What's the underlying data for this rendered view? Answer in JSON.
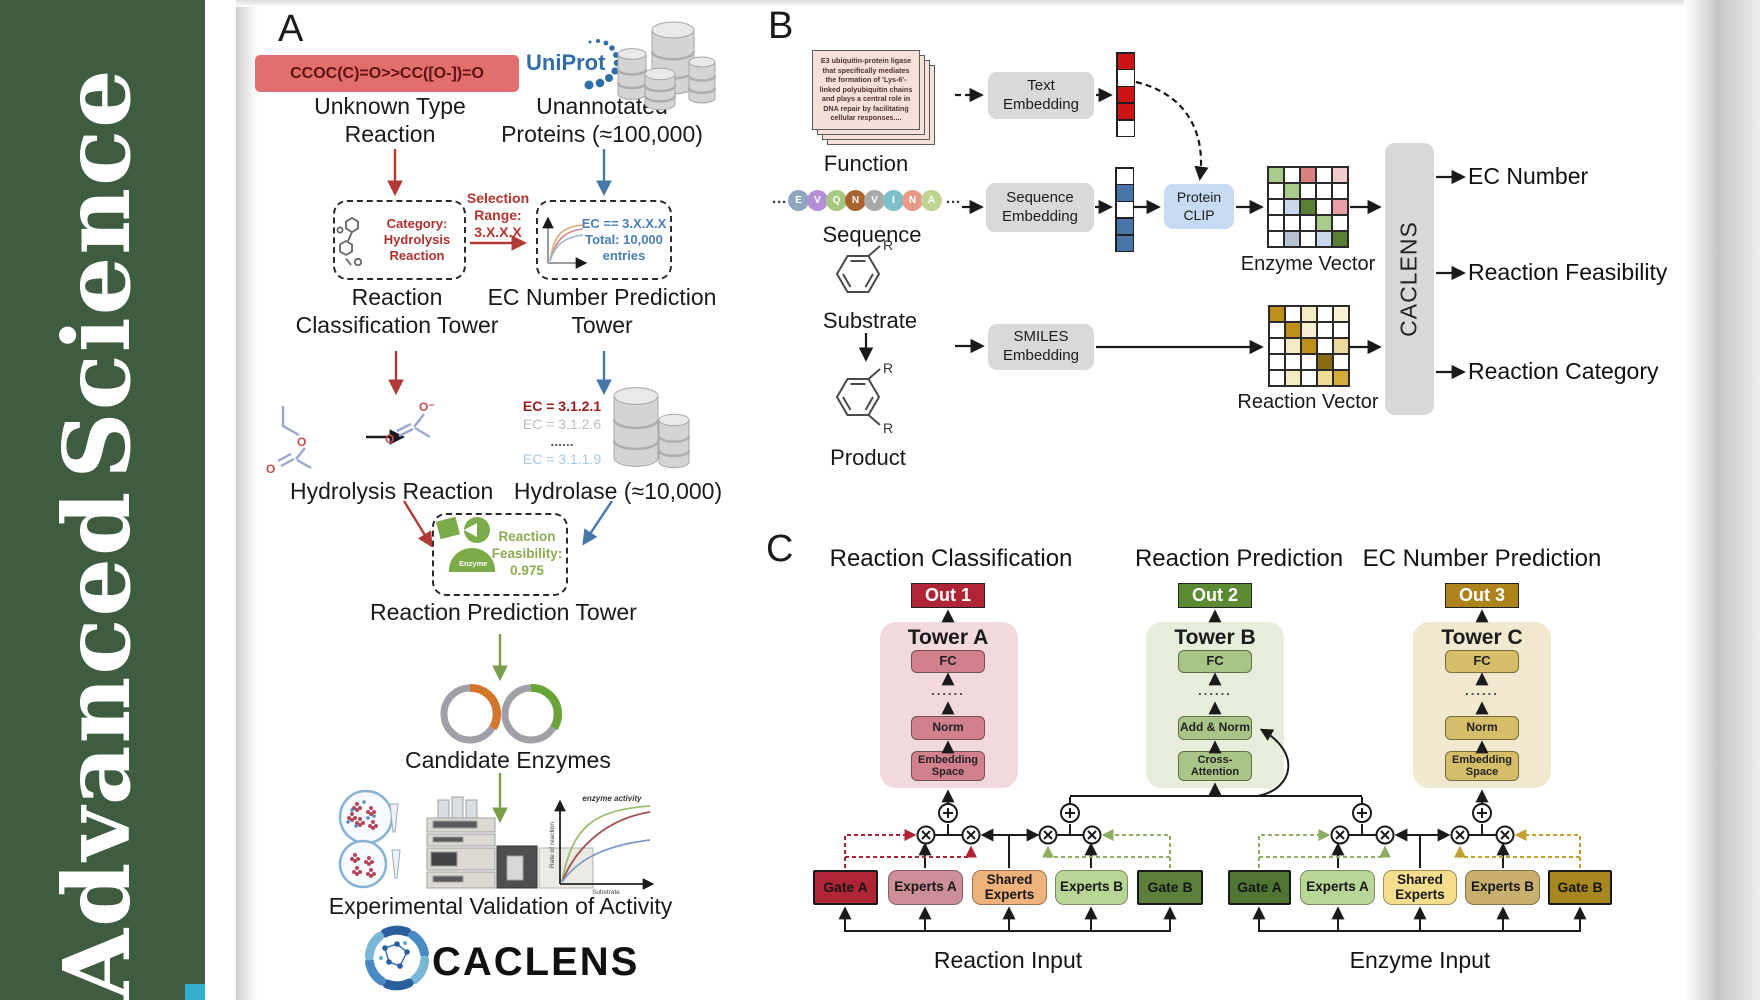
{
  "journal": {
    "name": "Advanced Science",
    "word_top": "Science",
    "word_bottom": "Advanced",
    "brand_green": "#3d5c40"
  },
  "panelA": {
    "label": "A",
    "smiles_box": "CCOC(C)=O>>CC([O-])=O",
    "unknown_type_label": "Unknown Type Reaction",
    "uniprot_logo": "UniProt",
    "unannotated_label": "Unannotated Proteins (≈100,000)",
    "category_box": "Category: Hydrolysis Reaction",
    "selection_label": "Selection Range: 3.X.X.X",
    "ec_filter_box": "EC == 3.X.X.X Total: 10,000 entries",
    "classification_tower_label": "Reaction Classification Tower",
    "ec_tower_label": "EC Number Prediction Tower",
    "hydrolysis_label": "Hydrolysis Reaction",
    "ec_list": [
      {
        "text": "EC = 3.1.2.1",
        "color": "#9b1b1b",
        "bold": true
      },
      {
        "text": "EC = 3.1.2.6",
        "color": "#bdbdbd",
        "bold": false
      },
      {
        "text": "......",
        "color": "#5a5a5a",
        "bold": true
      },
      {
        "text": "EC = 3.1.1.9",
        "color": "#abc8e2",
        "bold": false
      }
    ],
    "hydrolase_label": "Hydrolase (≈10,000)",
    "enzyme_badge": "Enzyme",
    "feasibility_label": "Reaction Feasibility: 0.975",
    "prediction_tower_label": "Reaction Prediction Tower",
    "candidate_label": "Candidate Enzymes",
    "validation_label": "Experimental Validation of Activity",
    "activity_plot": {
      "ylabel": "Rate of reaction",
      "xlabel": "Substrate",
      "annotation": "enzyme activity"
    },
    "brand": "CACLENS",
    "atoms": {
      "o": "O",
      "o_minus": "O⁻"
    }
  },
  "panelB": {
    "label": "B",
    "function_card_text": "E3 ubiquitin-protein ligase that specifically mediates the formation of 'Lys-6'-linked polyubiquitin chains and plays a central role in DNA repair by facilitating cellular responses....",
    "function_label": "Function",
    "ellipsis": "···",
    "sequence": {
      "letters": [
        "E",
        "V",
        "Q",
        "N",
        "V",
        "I",
        "N",
        "A"
      ],
      "colors": [
        "#8da6bd",
        "#b38fd6",
        "#a6c87e",
        "#a8632e",
        "#a9a9a9",
        "#7fbfca",
        "#e69a87",
        "#bfd490"
      ]
    },
    "sequence_label": "Sequence",
    "substrate_label": "Substrate",
    "product_label": "Product",
    "r_label": "R",
    "text_embedding_label": "Text Embedding",
    "sequence_embedding_label": "Sequence Embedding",
    "smiles_embedding_label": "SMILES Embedding",
    "protein_clip_label": "Protein CLIP",
    "text_vector": [
      "#cc1414",
      "#ffffff",
      "#cc1414",
      "#cc1414",
      "#ffffff"
    ],
    "sequence_vector": [
      "#ffffff",
      "#4a74a8",
      "#ffffff",
      "#4a74a8",
      "#4a74a8"
    ],
    "enzyme_vector_label": "Enzyme Vector",
    "enzyme_vector_grid": [
      [
        "#a9cc8a",
        "#ffffff",
        "#d87f7f",
        "#ffffff",
        "#f2c9cd"
      ],
      [
        "#ffffff",
        "#a9cc8a",
        "#ffffff",
        "#ffffff",
        "#ffffff"
      ],
      [
        "#ffffff",
        "#c9d9ec",
        "#5a7e35",
        "#ffffff",
        "#e8a0a6"
      ],
      [
        "#ffffff",
        "#ffffff",
        "#ffffff",
        "#a9cc8a",
        "#ffffff"
      ],
      [
        "#ffffff",
        "#b6c3d3",
        "#ffffff",
        "#c9d9ec",
        "#5a7e35"
      ]
    ],
    "reaction_vector_label": "Reaction Vector",
    "reaction_vector_grid": [
      [
        "#bf8d1a",
        "#ffffff",
        "#f4ebc2",
        "#ffffff",
        "#f8f1d4"
      ],
      [
        "#ffffff",
        "#bf8d1a",
        "#f6efd4",
        "#ffffff",
        "#ffffff"
      ],
      [
        "#ffffff",
        "#f4ebc2",
        "#bf8d1a",
        "#ffffff",
        "#ecd89a"
      ],
      [
        "#ffffff",
        "#ffffff",
        "#ffffff",
        "#8a6a12",
        "#ffffff"
      ],
      [
        "#ffffff",
        "#f4ebc2",
        "#ffffff",
        "#f0dc94",
        "#d2ab3a"
      ]
    ],
    "caclens_label": "CACLENS",
    "outputs": [
      "EC Number",
      "Reaction Feasibility",
      "Reaction Category"
    ]
  },
  "panelC": {
    "label": "C",
    "headers": [
      "Reaction Classification",
      "Reaction Prediction",
      "EC Number Prediction"
    ],
    "outs": [
      {
        "label": "Out 1",
        "bg": "#b02535"
      },
      {
        "label": "Out 2",
        "bg": "#5c8a33"
      },
      {
        "label": "Out 3",
        "bg": "#ad841c"
      }
    ],
    "towers": [
      {
        "name": "Tower A",
        "bg": "#f1d9dd",
        "box_bg": "#d2808d",
        "layers": {
          "top": "FC",
          "dots": "......",
          "mid": "Norm",
          "bottom": "Embedding Space"
        }
      },
      {
        "name": "Tower B",
        "bg": "#e6edda",
        "box_bg": "#a9c487",
        "layers": {
          "top": "FC",
          "dots": "......",
          "mid": "Add & Norm",
          "bottom": "Cross-Attention"
        }
      },
      {
        "name": "Tower C",
        "bg": "#f0e9d0",
        "box_bg": "#d6bd6a",
        "layers": {
          "top": "FC",
          "dots": "......",
          "mid": "Norm",
          "bottom": "Embedding Space"
        }
      }
    ],
    "groups": [
      {
        "input_label": "Reaction Input",
        "boxes": [
          {
            "label": "Gate A",
            "bg": "#b02535",
            "shape": "rect"
          },
          {
            "label": "Experts A",
            "bg": "#cc8f99",
            "shape": "round"
          },
          {
            "label": "Shared Experts",
            "bg": "#eeb27c",
            "shape": "round"
          },
          {
            "label": "Experts B",
            "bg": "#b8d695",
            "shape": "round"
          },
          {
            "label": "Gate B",
            "bg": "#5c7f3b",
            "shape": "rect"
          }
        ]
      },
      {
        "input_label": "Enzyme Input",
        "boxes": [
          {
            "label": "Gate A",
            "bg": "#4f7434",
            "shape": "rect"
          },
          {
            "label": "Experts A",
            "bg": "#b8d695",
            "shape": "round"
          },
          {
            "label": "Shared Experts",
            "bg": "#f4dd8d",
            "shape": "round"
          },
          {
            "label": "Experts B",
            "bg": "#c9b06e",
            "shape": "round"
          },
          {
            "label": "Gate B",
            "bg": "#a8871f",
            "shape": "rect"
          }
        ]
      }
    ]
  }
}
